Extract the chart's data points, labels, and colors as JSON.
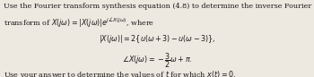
{
  "figsize": [
    3.5,
    0.86
  ],
  "dpi": 100,
  "bg_color": "#ede8e0",
  "text_color": "#1a1a1a",
  "line1": "Use the Fourier transform synthesis equation (4.8) to determine the inverse Fourier",
  "line2": "transform of $X(j\\omega) = |X(j\\omega)|e^{j\\angle X(j\\omega)}$, where",
  "line3": "$|X(j\\omega)| = 2\\{u(\\omega + 3) - u(\\omega - 3)\\},$",
  "line4": "$\\angle X(j\\omega) = -\\dfrac{3}{2}\\omega + \\pi.$",
  "line5": "Use your answer to determine the values of $t$ for which $x(t) = 0$.",
  "fontsize": 5.8,
  "fontsize_math": 5.8
}
